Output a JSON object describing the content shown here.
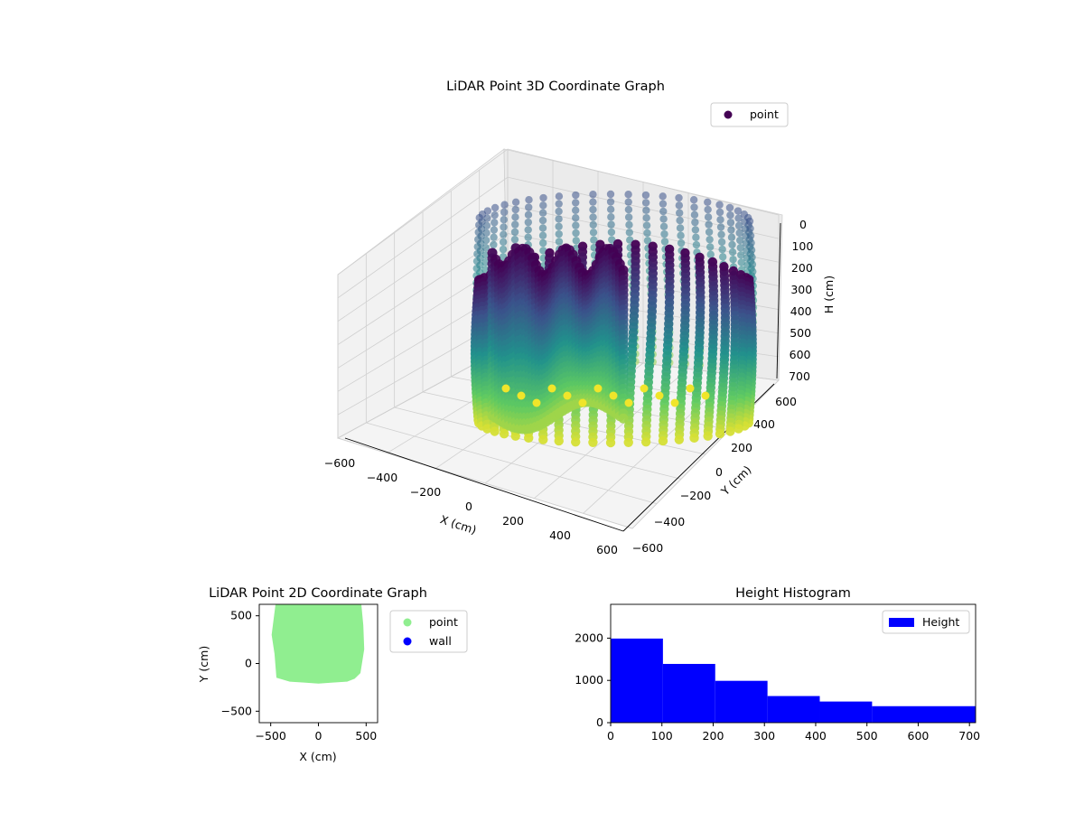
{
  "chart_data": [
    {
      "type": "scatter3d",
      "title": "LiDAR Point 3D Coordinate Graph",
      "xlabel": "X (cm)",
      "ylabel": "Y (cm)",
      "zlabel": "H (cm)",
      "xlim": [
        -600,
        600
      ],
      "ylim": [
        -600,
        600
      ],
      "zlim": [
        700,
        0
      ],
      "x_ticks": [
        "−600",
        "−400",
        "−200",
        "0",
        "200",
        "400",
        "600"
      ],
      "y_ticks": [
        "−600",
        "−400",
        "−200",
        "0",
        "200",
        "400",
        "600"
      ],
      "z_ticks": [
        "0",
        "100",
        "200",
        "300",
        "400",
        "500",
        "600",
        "700"
      ],
      "legend": [
        "point"
      ],
      "legend_position": "top-right",
      "colormap": "viridis",
      "cloud": {
        "outline_x": [
          -420,
          -300,
          -150,
          0,
          150,
          300,
          400,
          470,
          480,
          460,
          380,
          250,
          100,
          -100,
          -300,
          -430
        ],
        "outline_y": [
          -180,
          -200,
          -210,
          -200,
          -180,
          -150,
          -80,
          100,
          300,
          500,
          560,
          580,
          560,
          520,
          420,
          200
        ],
        "height_top": 0,
        "height_bottom": 690,
        "columns": 48
      }
    },
    {
      "type": "scatter",
      "title": "LiDAR Point 2D Coordinate Graph",
      "xlabel": "X (cm)",
      "ylabel": "Y (cm)",
      "xlim": [
        -620,
        620
      ],
      "ylim": [
        -620,
        620
      ],
      "x_ticks": [
        "−500",
        "0",
        "500"
      ],
      "y_ticks": [
        "−500",
        "0",
        "500"
      ],
      "legend": [
        "point",
        "wall"
      ],
      "legend_position": "outside-right",
      "series": [
        {
          "name": "point",
          "color": "#90ee90",
          "outline_x": [
            -440,
            -300,
            -150,
            0,
            150,
            300,
            380,
            440,
            480,
            470,
            450,
            300,
            0,
            -300,
            -450,
            -490,
            -460
          ],
          "outline_y": [
            -150,
            -190,
            -200,
            -210,
            -200,
            -190,
            -160,
            -100,
            150,
            400,
            620,
            620,
            620,
            620,
            620,
            300,
            100
          ]
        },
        {
          "name": "wall",
          "color": "#0000ff",
          "points": []
        }
      ]
    },
    {
      "type": "histogram",
      "title": "Height Histogram",
      "xlim": [
        0,
        712
      ],
      "ylim": [
        0,
        2800
      ],
      "x_ticks": [
        "0",
        "100",
        "200",
        "300",
        "400",
        "500",
        "600",
        "700"
      ],
      "y_ticks": [
        "0",
        "1000",
        "2000"
      ],
      "legend": [
        "Height"
      ],
      "legend_position": "upper right",
      "color": "#0000ff",
      "bin_edges": [
        0,
        102,
        204,
        306,
        408,
        510,
        712
      ],
      "counts": [
        1990,
        1390,
        990,
        630,
        500,
        390
      ]
    }
  ],
  "colors": {
    "viridis_dark": "#440154",
    "viridis_light": "#fde725",
    "point_green": "#90ee90",
    "wall_blue": "#0000ff"
  }
}
